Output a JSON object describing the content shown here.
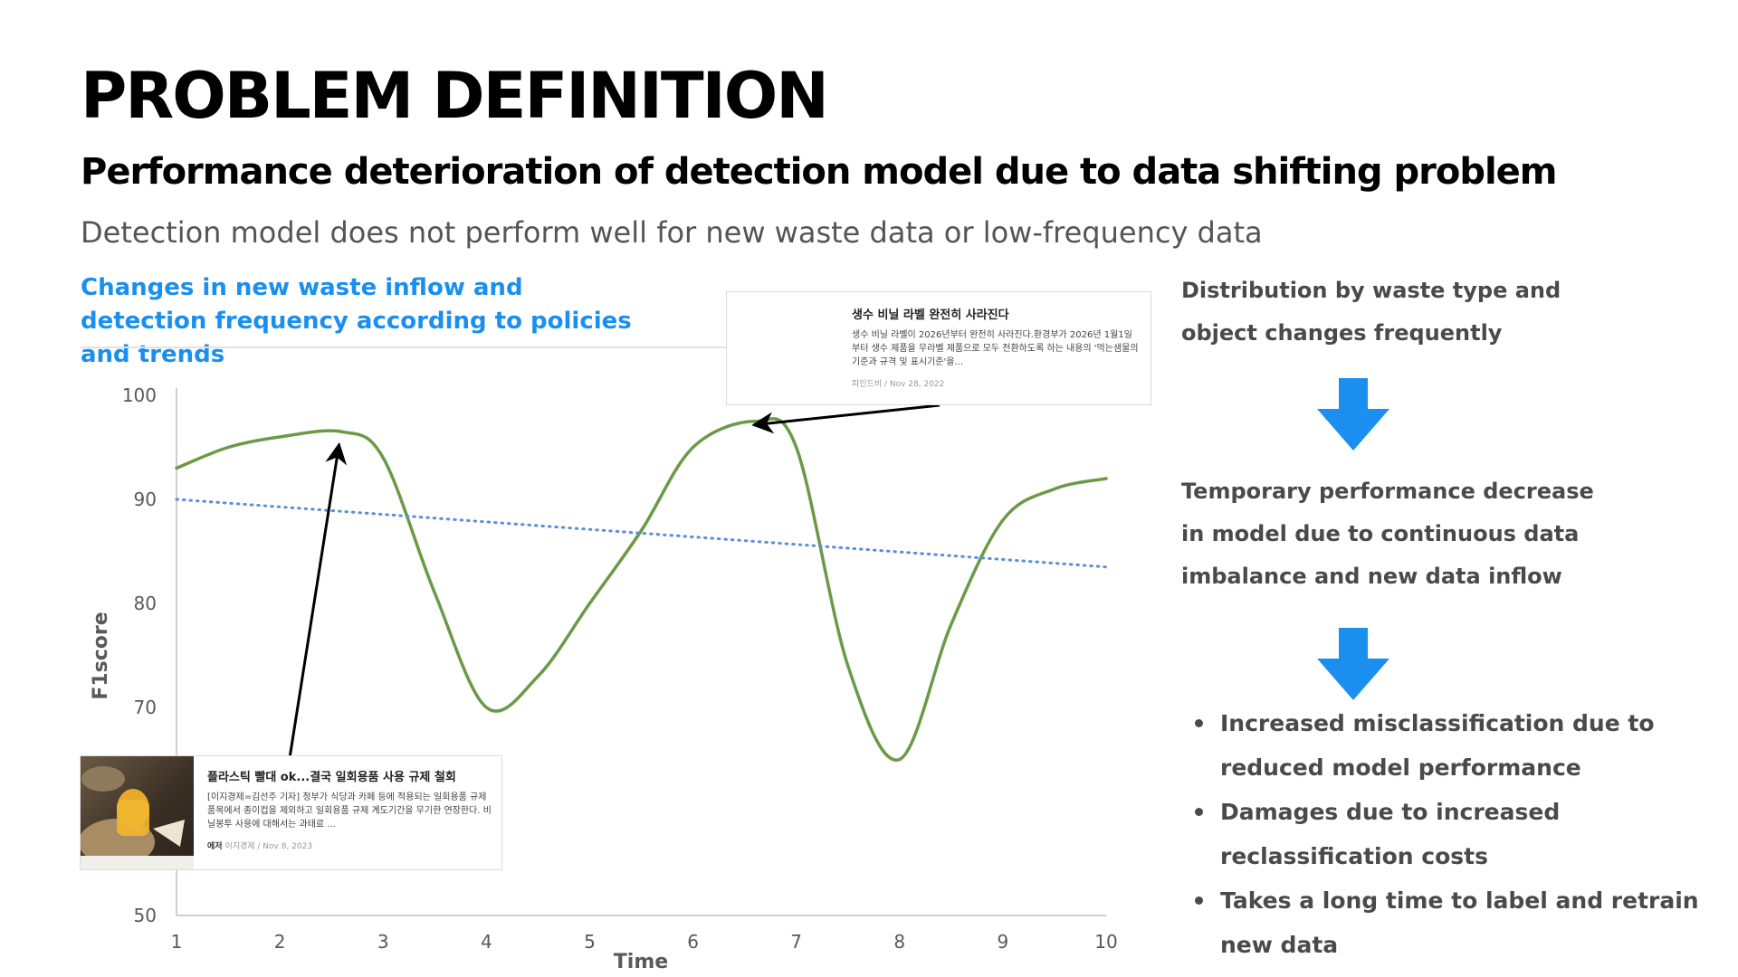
{
  "header": {
    "title": "PROBLEM DEFINITION",
    "subtitle": "Performance deterioration of detection model due to data shifting problem",
    "description": "Detection model does not perform well for new waste data or low-frequency data"
  },
  "chart_heading": "Changes in new waste inflow and detection frequency according to policies and trends",
  "chart_data": {
    "type": "line",
    "xlabel": "Time",
    "ylabel": "F1score",
    "xlim": [
      1,
      10
    ],
    "ylim": [
      50,
      100
    ],
    "x_ticks": [
      1,
      2,
      3,
      4,
      5,
      6,
      7,
      8,
      9,
      10
    ],
    "y_ticks": [
      50,
      70,
      80,
      90,
      100
    ],
    "grid": false,
    "series": [
      {
        "style": "solid",
        "color": "#6b9a47",
        "x": [
          1,
          1.5,
          2,
          2.6,
          3,
          3.5,
          4,
          4.5,
          5,
          5.5,
          6,
          6.6,
          7,
          7.5,
          8,
          8.5,
          9,
          9.5,
          10
        ],
        "y": [
          93,
          95,
          96,
          96.5,
          94,
          81,
          70,
          73,
          80,
          87,
          95,
          97.5,
          95,
          74,
          65,
          78,
          88,
          91,
          92
        ]
      },
      {
        "style": "dotted",
        "color": "#5b8fd6",
        "x": [
          1,
          10
        ],
        "y": [
          90,
          83.5
        ]
      }
    ],
    "annotations": [
      {
        "target_x": 2.6,
        "target_y": 96.5,
        "from": "bottom-left-card"
      },
      {
        "target_x": 6.5,
        "target_y": 97.5,
        "from": "top-right-card"
      }
    ]
  },
  "news_top": {
    "title": "생수 비닐 라벨 완전히 사라진다",
    "body": "생수 비닐 라벨이 2026년부터 완전히 사라진다.환경부가 2026년 1월1일부터 생수 제품을 무라벨 제품으로 모두 전환하도록 하는 내용의 '먹는샘물의 기준과 규격 및 표시기준'을...",
    "meta": "파인드비 / Nov 28, 2022"
  },
  "news_bottom": {
    "title": "플라스틱 빨대 ok...결국 일회용품 사용 규제 철회",
    "body": "[이지경제=김선주 기자] 정부가 식당과 카페 등에 적용되는 일회용품 규제 품목에서 종이컵을 제외하고 일회용품 규제 계도기간을 무기한 연장한다. 비닐봉투 사용에 대해서는 과태료 ...",
    "meta_badge": "에저",
    "meta": "이지경제 / Nov 8, 2023"
  },
  "right": {
    "point1": "Distribution by waste type and object changes frequently",
    "point2": "Temporary performance decrease in model due to continuous data imbalance and new data inflow",
    "bullets": [
      "Increased misclassification due to reduced model performance",
      "Damages due to increased reclassification costs",
      "Takes a long time to label and retrain new data"
    ],
    "arrow_color": "#1a8fef"
  }
}
